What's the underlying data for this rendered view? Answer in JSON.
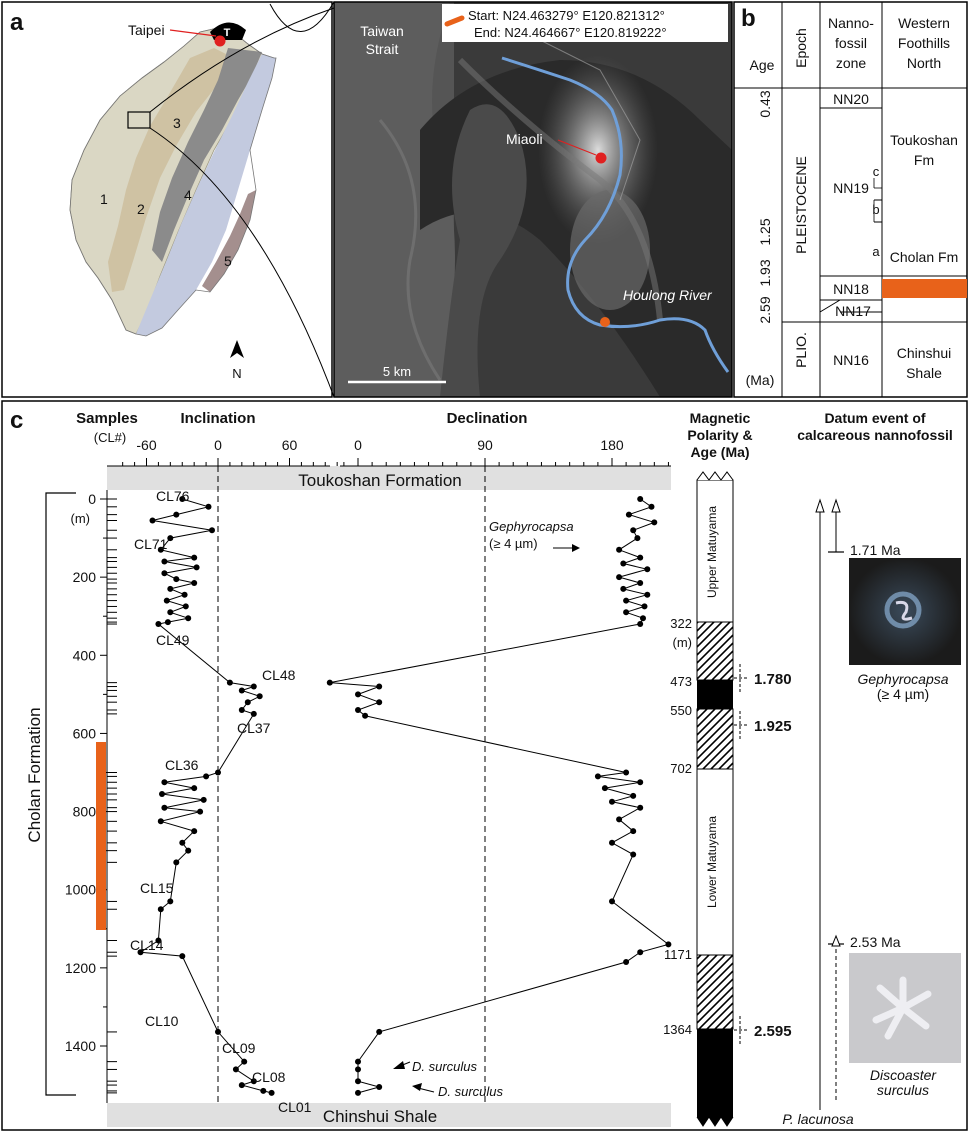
{
  "panel_a": {
    "label": "a",
    "taipei": "Taipei",
    "taipei_marker": "T",
    "regions": [
      "1",
      "2",
      "3",
      "4",
      "5"
    ],
    "north": "N",
    "strait": "Taiwan Strait",
    "city": "Miaoli",
    "river": "Houlong River",
    "scale": "5 km",
    "start": "Start: N24.463279° E120.821312°",
    "end": "End: N24.464667° E120.819222°"
  },
  "panel_b": {
    "label": "b",
    "headers": {
      "age": "Age",
      "epoch": "Epoch",
      "zone": "Nanno-fossil zone",
      "west": "Western Foothills North"
    },
    "ages": [
      "0.43",
      "1.25",
      "1.93",
      "2.59"
    ],
    "unit": "(Ma)",
    "epochs": [
      "PLEISTOCENE",
      "PLIO."
    ],
    "zones": [
      "NN20",
      "NN19",
      "NN18",
      "NN17",
      "NN16"
    ],
    "subzones": [
      "c",
      "b",
      "a"
    ],
    "formations": [
      "Toukoshan Fm",
      "Cholan Fm",
      "Chinshui Shale"
    ]
  },
  "panel_c": {
    "label": "c",
    "headers": {
      "samples": "Samples",
      "samples_sub": "(CL#)",
      "inclination": "Inclination",
      "declination": "Declination",
      "polarity": "Magnetic Polarity & Age (Ma)",
      "datum": "Datum event of calcareous nannofossil"
    },
    "inc_ticks": [
      "-60",
      "0",
      "60"
    ],
    "dec_ticks": [
      "0",
      "90",
      "180"
    ],
    "depth_ticks": [
      "0",
      "200",
      "400",
      "600",
      "800",
      "1000",
      "1200",
      "1400"
    ],
    "depth_unit": "(m)",
    "top_formation": "Toukoshan Formation",
    "bottom_formation": "Chinshui Shale",
    "side_formation": "Cholan Formation",
    "sample_labels": [
      "CL76",
      "CL71",
      "CL49",
      "CL48",
      "CL37",
      "CL36",
      "CL15",
      "CL14",
      "CL10",
      "CL09",
      "CL08",
      "CL01"
    ],
    "annotations": {
      "gephyro": "Gephyrocapsa",
      "gephyro_size": "(≥ 4 µm)",
      "dsurc1": "D. surculus",
      "dsurc2": "D. surculus"
    },
    "polarity_zones": [
      "Upper Matuyama",
      "Lower Matuyama"
    ],
    "polarity_depths": [
      "322",
      "(m)",
      "473",
      "550",
      "702",
      "1171",
      "1364"
    ],
    "polarity_ages": [
      "1.780",
      "1.925",
      "2.595"
    ],
    "datums": {
      "age1": "1.71 Ma",
      "fossil1": "Gephyrocapsa",
      "fossil1_size": "(≥ 4 µm)",
      "age2": "2.53 Ma",
      "fossil2": "Discoaster",
      "fossil2b": "surculus",
      "plac": "P. lacunosa"
    }
  },
  "chart_data": {
    "type": "scatter",
    "inclination_profile": [
      {
        "depth": 0,
        "inc": -30
      },
      {
        "depth": 20,
        "inc": -8
      },
      {
        "depth": 40,
        "inc": -35
      },
      {
        "depth": 55,
        "inc": -55
      },
      {
        "depth": 80,
        "inc": -5
      },
      {
        "depth": 100,
        "inc": -40
      },
      {
        "depth": 130,
        "inc": -48
      },
      {
        "depth": 150,
        "inc": -20
      },
      {
        "depth": 160,
        "inc": -45
      },
      {
        "depth": 175,
        "inc": -18
      },
      {
        "depth": 190,
        "inc": -45
      },
      {
        "depth": 205,
        "inc": -35
      },
      {
        "depth": 215,
        "inc": -20
      },
      {
        "depth": 230,
        "inc": -40
      },
      {
        "depth": 245,
        "inc": -28
      },
      {
        "depth": 260,
        "inc": -43
      },
      {
        "depth": 275,
        "inc": -27
      },
      {
        "depth": 290,
        "inc": -40
      },
      {
        "depth": 305,
        "inc": -25
      },
      {
        "depth": 315,
        "inc": -42
      },
      {
        "depth": 320,
        "inc": -50
      },
      {
        "depth": 470,
        "inc": 10
      },
      {
        "depth": 480,
        "inc": 30
      },
      {
        "depth": 490,
        "inc": 20
      },
      {
        "depth": 505,
        "inc": 35
      },
      {
        "depth": 520,
        "inc": 25
      },
      {
        "depth": 540,
        "inc": 20
      },
      {
        "depth": 550,
        "inc": 30
      },
      {
        "depth": 700,
        "inc": 0
      },
      {
        "depth": 710,
        "inc": -10
      },
      {
        "depth": 725,
        "inc": -45
      },
      {
        "depth": 740,
        "inc": -20
      },
      {
        "depth": 755,
        "inc": -47
      },
      {
        "depth": 770,
        "inc": -12
      },
      {
        "depth": 790,
        "inc": -45
      },
      {
        "depth": 800,
        "inc": -15
      },
      {
        "depth": 825,
        "inc": -48
      },
      {
        "depth": 850,
        "inc": -20
      },
      {
        "depth": 880,
        "inc": -30
      },
      {
        "depth": 900,
        "inc": -25
      },
      {
        "depth": 930,
        "inc": -35
      },
      {
        "depth": 1030,
        "inc": -40
      },
      {
        "depth": 1050,
        "inc": -48
      },
      {
        "depth": 1130,
        "inc": -50
      },
      {
        "depth": 1160,
        "inc": -65
      },
      {
        "depth": 1170,
        "inc": -30
      },
      {
        "depth": 1364,
        "inc": 0
      },
      {
        "depth": 1440,
        "inc": 22
      },
      {
        "depth": 1460,
        "inc": 15
      },
      {
        "depth": 1490,
        "inc": 30
      },
      {
        "depth": 1500,
        "inc": 20
      },
      {
        "depth": 1515,
        "inc": 38
      },
      {
        "depth": 1520,
        "inc": 45
      }
    ],
    "declination_profile": [
      {
        "depth": 0,
        "dec": 200
      },
      {
        "depth": 20,
        "dec": 208
      },
      {
        "depth": 40,
        "dec": 192
      },
      {
        "depth": 60,
        "dec": 210
      },
      {
        "depth": 80,
        "dec": 195
      },
      {
        "depth": 100,
        "dec": 198
      },
      {
        "depth": 130,
        "dec": 185
      },
      {
        "depth": 150,
        "dec": 200
      },
      {
        "depth": 165,
        "dec": 188
      },
      {
        "depth": 180,
        "dec": 205
      },
      {
        "depth": 200,
        "dec": 185
      },
      {
        "depth": 215,
        "dec": 200
      },
      {
        "depth": 230,
        "dec": 188
      },
      {
        "depth": 245,
        "dec": 205
      },
      {
        "depth": 260,
        "dec": 190
      },
      {
        "depth": 275,
        "dec": 203
      },
      {
        "depth": 290,
        "dec": 190
      },
      {
        "depth": 305,
        "dec": 202
      },
      {
        "depth": 320,
        "dec": 200
      },
      {
        "depth": 470,
        "dec": -20
      },
      {
        "depth": 480,
        "dec": 15
      },
      {
        "depth": 500,
        "dec": 0
      },
      {
        "depth": 520,
        "dec": 15
      },
      {
        "depth": 540,
        "dec": 0
      },
      {
        "depth": 555,
        "dec": 5
      },
      {
        "depth": 700,
        "dec": 190
      },
      {
        "depth": 710,
        "dec": 170
      },
      {
        "depth": 725,
        "dec": 200
      },
      {
        "depth": 740,
        "dec": 175
      },
      {
        "depth": 760,
        "dec": 195
      },
      {
        "depth": 775,
        "dec": 180
      },
      {
        "depth": 790,
        "dec": 200
      },
      {
        "depth": 820,
        "dec": 185
      },
      {
        "depth": 850,
        "dec": 195
      },
      {
        "depth": 880,
        "dec": 180
      },
      {
        "depth": 910,
        "dec": 195
      },
      {
        "depth": 1030,
        "dec": 180
      },
      {
        "depth": 1140,
        "dec": 220
      },
      {
        "depth": 1160,
        "dec": 200
      },
      {
        "depth": 1185,
        "dec": 190
      },
      {
        "depth": 1364,
        "dec": 15
      },
      {
        "depth": 1440,
        "dec": 0
      },
      {
        "depth": 1460,
        "dec": 0
      },
      {
        "depth": 1490,
        "dec": 0
      },
      {
        "depth": 1505,
        "dec": 15
      },
      {
        "depth": 1520,
        "dec": 0
      }
    ],
    "inc_range": [
      -80,
      100
    ],
    "dec_range": [
      -35,
      235
    ],
    "depth_range": [
      -10,
      1540
    ]
  },
  "colors": {
    "orange": "#e8621a",
    "river": "#6f9fd8",
    "zone3": "#8b8b8b",
    "zone4": "#c3cadf",
    "zone1": "#dad7c4",
    "zone2": "#cfc2a3",
    "zone5": "#a48f8e",
    "formation_band": "#e0e0e0"
  }
}
